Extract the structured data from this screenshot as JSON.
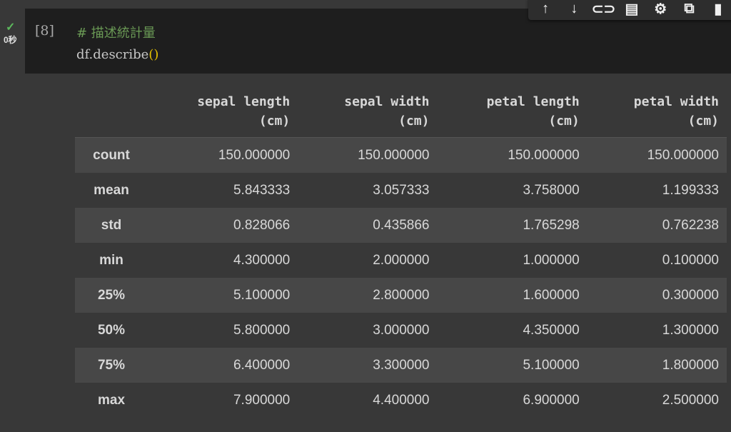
{
  "cell": {
    "status_icon": "check-icon",
    "exec_time": "0秒",
    "prompt": "[8]",
    "comment": "#  描述統計量",
    "code": "df.describe",
    "parens": "()"
  },
  "toolbar": [
    {
      "icon": "arrow-up-icon",
      "glyph": "↑"
    },
    {
      "icon": "arrow-down-icon",
      "glyph": "↓"
    },
    {
      "icon": "link-icon",
      "glyph": "⊂⊃"
    },
    {
      "icon": "comment-icon",
      "glyph": "▤"
    },
    {
      "icon": "gear-icon",
      "glyph": "⚙"
    },
    {
      "icon": "mirror-cell-icon",
      "glyph": "⧉"
    },
    {
      "icon": "trash-icon",
      "glyph": "▮"
    }
  ],
  "table": {
    "columns": [
      "sepal length\n(cm)",
      "sepal width\n(cm)",
      "petal length\n(cm)",
      "petal width\n(cm)"
    ],
    "rows": [
      {
        "index": "count",
        "values": [
          "150.000000",
          "150.000000",
          "150.000000",
          "150.000000"
        ]
      },
      {
        "index": "mean",
        "values": [
          "5.843333",
          "3.057333",
          "3.758000",
          "1.199333"
        ]
      },
      {
        "index": "std",
        "values": [
          "0.828066",
          "0.435866",
          "1.765298",
          "0.762238"
        ]
      },
      {
        "index": "min",
        "values": [
          "4.300000",
          "2.000000",
          "1.000000",
          "0.100000"
        ]
      },
      {
        "index": "25%",
        "values": [
          "5.100000",
          "2.800000",
          "1.600000",
          "0.300000"
        ]
      },
      {
        "index": "50%",
        "values": [
          "5.800000",
          "3.000000",
          "4.350000",
          "1.300000"
        ]
      },
      {
        "index": "75%",
        "values": [
          "6.400000",
          "3.300000",
          "5.100000",
          "1.800000"
        ]
      },
      {
        "index": "max",
        "values": [
          "7.900000",
          "4.400000",
          "6.900000",
          "2.500000"
        ]
      }
    ]
  }
}
